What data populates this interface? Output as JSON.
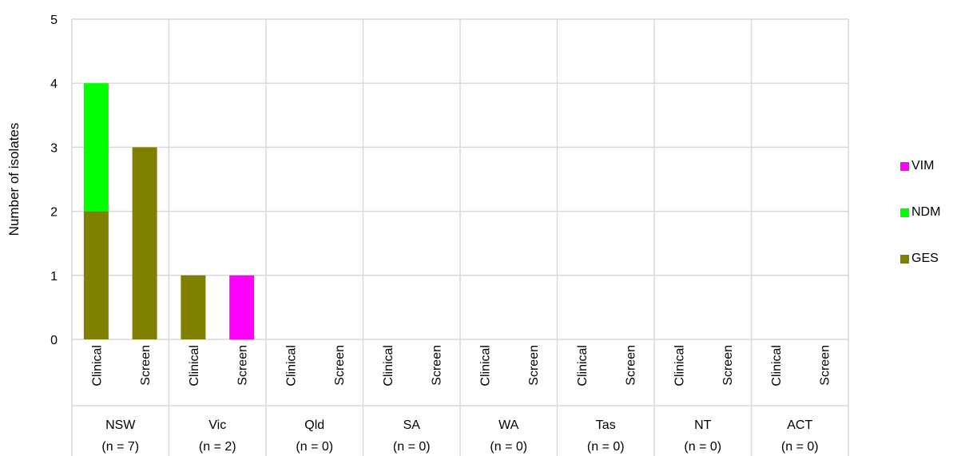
{
  "chart_data": {
    "type": "bar",
    "stacked": true,
    "ylabel": "Number of isolates",
    "ylim": [
      0,
      5
    ],
    "yticks": [
      0,
      1,
      2,
      3,
      4,
      5
    ],
    "grid": true,
    "legend_position": "right",
    "groups": [
      {
        "name": "NSW",
        "n_label": "(n = 7)"
      },
      {
        "name": "Vic",
        "n_label": "(n = 2)"
      },
      {
        "name": "Qld",
        "n_label": "(n = 0)"
      },
      {
        "name": "SA",
        "n_label": "(n = 0)"
      },
      {
        "name": "WA",
        "n_label": "(n = 0)"
      },
      {
        "name": "Tas",
        "n_label": "(n = 0)"
      },
      {
        "name": "NT",
        "n_label": "(n = 0)"
      },
      {
        "name": "ACT",
        "n_label": "(n = 0)"
      }
    ],
    "subcategories": [
      "Clinical",
      "Screen"
    ],
    "series": [
      {
        "name": "GES",
        "color": "#808000",
        "values": [
          2,
          3,
          1,
          0,
          0,
          0,
          0,
          0,
          0,
          0,
          0,
          0,
          0,
          0,
          0,
          0
        ]
      },
      {
        "name": "NDM",
        "color": "#00ff00",
        "values": [
          2,
          0,
          0,
          0,
          0,
          0,
          0,
          0,
          0,
          0,
          0,
          0,
          0,
          0,
          0,
          0
        ]
      },
      {
        "name": "VIM",
        "color": "#ff00ff",
        "values": [
          0,
          0,
          0,
          1,
          0,
          0,
          0,
          0,
          0,
          0,
          0,
          0,
          0,
          0,
          0,
          0
        ]
      }
    ],
    "legend_order": [
      "VIM",
      "NDM",
      "GES"
    ]
  }
}
